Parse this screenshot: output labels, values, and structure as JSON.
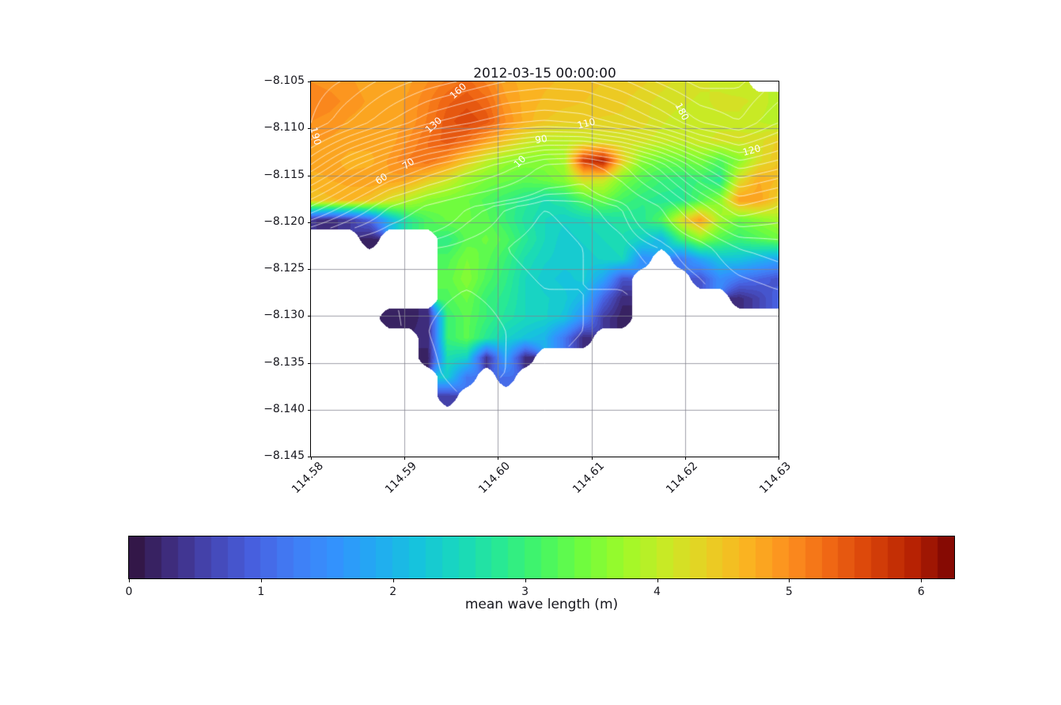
{
  "figure": {
    "title": "2012-03-15 00:00:00",
    "background": "#ffffff",
    "text_color": "#16161d"
  },
  "axes": {
    "x_tick_labels": [
      "114.58",
      "114.59",
      "114.60",
      "114.61",
      "114.62",
      "114.63"
    ],
    "x_tick_values": [
      114.58,
      114.59,
      114.6,
      114.61,
      114.62,
      114.63
    ],
    "y_tick_labels": [
      "−8.105",
      "−8.110",
      "−8.115",
      "−8.120",
      "−8.125",
      "−8.130",
      "−8.135",
      "−8.140",
      "−8.145"
    ],
    "y_tick_values": [
      -8.105,
      -8.11,
      -8.115,
      -8.12,
      -8.125,
      -8.13,
      -8.135,
      -8.14,
      -8.145
    ],
    "x_range": [
      114.58,
      114.63
    ],
    "y_range": [
      -8.145,
      -8.105
    ],
    "grid_color": "rgba(130,130,142,0.75)"
  },
  "colorbar": {
    "label": "mean wave length (m)",
    "tick_labels": [
      "0",
      "1",
      "2",
      "3",
      "4",
      "5",
      "6"
    ],
    "tick_values": [
      0,
      1,
      2,
      3,
      4,
      5,
      6
    ],
    "vmin": 0,
    "vmax": 6.25,
    "level_step": 0.125
  },
  "colormap": {
    "name": "turbo",
    "stops": [
      "#30123b",
      "#3e2c7c",
      "#4546b4",
      "#475fde",
      "#417df6",
      "#3392fd",
      "#22aaf2",
      "#16c3dd",
      "#18d8bd",
      "#28e994",
      "#44f665",
      "#70fc3e",
      "#9dfa29",
      "#c8ea25",
      "#e9d024",
      "#fab321",
      "#fd8f1f",
      "#f06714",
      "#d84209",
      "#b72203",
      "#7a0403"
    ]
  },
  "chart_data": {
    "type": "heatmap",
    "title": "2012-03-15 00:00:00",
    "xlabel": "",
    "ylabel": "",
    "colorbar_label": "mean wave length (m)",
    "x_range": [
      114.58,
      114.63
    ],
    "y_range": [
      -8.145,
      -8.105
    ],
    "legend": "none",
    "grid": true,
    "wave_grid": {
      "description": "mean wave length (m), null = land (masked white)",
      "ncols": 25,
      "nrows": 20,
      "lon_min": 114.58,
      "lon_max": 114.63,
      "lat_top": -8.105,
      "lat_bottom": -8.145,
      "values": [
        [
          5.0,
          4.95,
          4.9,
          4.8,
          4.8,
          4.85,
          5.0,
          5.15,
          5.3,
          5.1,
          4.8,
          4.7,
          4.65,
          4.6,
          4.55,
          4.5,
          4.45,
          4.4,
          4.3,
          4.2,
          4.15,
          4.1,
          4.05,
          null,
          null
        ],
        [
          5.1,
          5.05,
          4.95,
          4.85,
          4.8,
          4.9,
          5.1,
          5.35,
          5.45,
          5.3,
          4.9,
          4.7,
          4.6,
          4.55,
          4.5,
          4.45,
          4.4,
          4.3,
          4.2,
          4.15,
          4.1,
          4.15,
          4.15,
          4.1,
          3.9
        ],
        [
          5.0,
          4.95,
          4.85,
          4.8,
          4.8,
          4.9,
          5.15,
          5.45,
          5.6,
          5.45,
          5.0,
          4.7,
          4.5,
          4.4,
          4.4,
          4.35,
          4.35,
          4.3,
          4.15,
          4.05,
          4.1,
          4.1,
          4.1,
          4.0,
          3.9
        ],
        [
          4.9,
          4.85,
          4.8,
          4.8,
          4.8,
          5.0,
          5.25,
          5.45,
          5.25,
          4.85,
          4.5,
          4.15,
          3.95,
          3.95,
          4.05,
          4.15,
          4.15,
          4.15,
          4.05,
          4.0,
          4.1,
          4.15,
          4.15,
          4.2,
          4.4
        ],
        [
          4.8,
          4.8,
          4.7,
          4.7,
          4.9,
          5.15,
          5.25,
          4.95,
          4.45,
          4.0,
          3.7,
          3.6,
          3.6,
          3.8,
          5.7,
          6.0,
          4.4,
          3.6,
          3.4,
          3.4,
          3.5,
          3.2,
          3.6,
          4.2,
          4.5
        ],
        [
          4.7,
          4.75,
          4.8,
          4.85,
          4.85,
          4.75,
          4.4,
          4.1,
          3.7,
          3.5,
          3.4,
          3.3,
          3.4,
          3.6,
          4.2,
          4.1,
          3.5,
          3.2,
          3.0,
          2.9,
          3.0,
          2.8,
          4.2,
          4.75,
          4.6
        ],
        [
          4.5,
          4.6,
          4.65,
          4.55,
          4.2,
          3.9,
          3.6,
          3.5,
          3.4,
          3.2,
          3.0,
          2.8,
          2.6,
          2.75,
          3.2,
          3.4,
          3.1,
          2.9,
          2.8,
          2.8,
          3.2,
          3.6,
          4.85,
          4.85,
          4.4
        ],
        [
          0.4,
          0.3,
          0.5,
          1.0,
          2.0,
          2.8,
          3.2,
          3.4,
          3.4,
          3.3,
          3.0,
          2.7,
          2.5,
          2.4,
          2.5,
          2.6,
          2.7,
          2.8,
          3.2,
          4.2,
          4.85,
          3.8,
          3.4,
          3.6,
          3.8
        ],
        [
          null,
          null,
          null,
          0.2,
          null,
          null,
          null,
          2.9,
          3.3,
          3.4,
          3.2,
          2.8,
          2.5,
          2.3,
          2.4,
          2.5,
          2.6,
          2.4,
          2.0,
          3.0,
          3.6,
          3.2,
          3.0,
          3.2,
          3.4
        ],
        [
          null,
          null,
          null,
          null,
          null,
          null,
          null,
          3.2,
          3.5,
          3.3,
          3.0,
          2.6,
          2.4,
          2.3,
          2.3,
          2.4,
          2.5,
          1.5,
          null,
          1.2,
          1.8,
          2.2,
          2.2,
          2.0,
          1.8
        ],
        [
          null,
          null,
          null,
          null,
          null,
          null,
          null,
          3.3,
          3.6,
          3.2,
          2.9,
          2.5,
          2.3,
          2.2,
          2.3,
          1.8,
          0.8,
          null,
          null,
          null,
          0.8,
          1.5,
          1.2,
          1.0,
          0.8
        ],
        [
          null,
          null,
          null,
          null,
          null,
          null,
          null,
          3.2,
          3.4,
          3.0,
          2.8,
          2.5,
          2.4,
          2.3,
          2.0,
          1.0,
          0.3,
          null,
          null,
          null,
          null,
          null,
          0.3,
          0.6,
          1.0
        ],
        [
          null,
          null,
          null,
          null,
          0.15,
          0.2,
          0.3,
          3.0,
          3.3,
          3.0,
          2.7,
          2.5,
          2.4,
          2.2,
          1.5,
          0.5,
          0.15,
          null,
          null,
          null,
          null,
          null,
          null,
          null,
          null
        ],
        [
          null,
          null,
          null,
          null,
          null,
          null,
          0.3,
          3.0,
          3.3,
          2.8,
          2.4,
          2.2,
          2.0,
          1.2,
          0.3,
          null,
          null,
          null,
          null,
          null,
          null,
          null,
          null,
          null,
          null
        ],
        [
          null,
          null,
          null,
          null,
          null,
          null,
          0.2,
          2.6,
          2.4,
          0.4,
          1.8,
          0.3,
          null,
          null,
          null,
          null,
          null,
          null,
          null,
          null,
          null,
          null,
          null,
          null,
          null
        ],
        [
          null,
          null,
          null,
          null,
          null,
          null,
          null,
          2.3,
          1.2,
          null,
          1.1,
          null,
          null,
          null,
          null,
          null,
          null,
          null,
          null,
          null,
          null,
          null,
          null,
          null,
          null
        ],
        [
          null,
          null,
          null,
          null,
          null,
          null,
          null,
          0.5,
          null,
          null,
          null,
          null,
          null,
          null,
          null,
          null,
          null,
          null,
          null,
          null,
          null,
          null,
          null,
          null,
          null
        ],
        [
          null,
          null,
          null,
          null,
          null,
          null,
          null,
          null,
          null,
          null,
          null,
          null,
          null,
          null,
          null,
          null,
          null,
          null,
          null,
          null,
          null,
          null,
          null,
          null,
          null
        ],
        [
          null,
          null,
          null,
          null,
          null,
          null,
          null,
          null,
          null,
          null,
          null,
          null,
          null,
          null,
          null,
          null,
          null,
          null,
          null,
          null,
          null,
          null,
          null,
          null,
          null
        ],
        [
          null,
          null,
          null,
          null,
          null,
          null,
          null,
          null,
          null,
          null,
          null,
          null,
          null,
          null,
          null,
          null,
          null,
          null,
          null,
          null,
          null,
          null,
          null,
          null,
          null
        ]
      ]
    },
    "contour_overlay": {
      "color": "#ffffff",
      "levels": [
        2,
        4,
        6,
        8,
        10,
        20,
        30,
        40,
        50,
        60,
        70,
        80,
        90,
        100,
        110,
        120,
        130,
        140,
        150,
        160,
        170,
        180,
        190
      ],
      "grid": {
        "ncols": 13,
        "nrows": 10,
        "values": [
          [
            196,
            188,
            176,
            166,
            158,
            150,
            146,
            148,
            158,
            172,
            184,
            182,
            170
          ],
          [
            190,
            170,
            150,
            132,
            122,
            112,
            108,
            112,
            124,
            140,
            160,
            170,
            150
          ],
          [
            140,
            105,
            80,
            62,
            48,
            35,
            18,
            14,
            28,
            55,
            90,
            115,
            105
          ],
          [
            80,
            55,
            30,
            18,
            10,
            6,
            4,
            5,
            8,
            20,
            45,
            70,
            60
          ],
          [
            20,
            10,
            8,
            6,
            5,
            4,
            3,
            4,
            5,
            8,
            15,
            30,
            35
          ],
          [
            5,
            4,
            4,
            5,
            6,
            5,
            4,
            4,
            4,
            5,
            8,
            15,
            20
          ],
          [
            2,
            2,
            3,
            6,
            8,
            6,
            5,
            4,
            3,
            3,
            4,
            8,
            10
          ],
          [
            1,
            1,
            2,
            5,
            8,
            6,
            4,
            3,
            2,
            2,
            3,
            5,
            6
          ],
          [
            0,
            0,
            1,
            3,
            5,
            4,
            3,
            2,
            1,
            1,
            2,
            3,
            4
          ],
          [
            0,
            0,
            0,
            1,
            2,
            2,
            2,
            1,
            1,
            0,
            1,
            2,
            2
          ]
        ]
      },
      "labels": [
        {
          "text": "190",
          "lon": 114.5805,
          "lat": -8.1108,
          "rot": 75
        },
        {
          "text": "160",
          "lon": 114.5957,
          "lat": -8.106,
          "rot": -42
        },
        {
          "text": "130",
          "lon": 114.5931,
          "lat": -8.1096,
          "rot": -42
        },
        {
          "text": "70",
          "lon": 114.5904,
          "lat": -8.1138,
          "rot": -35
        },
        {
          "text": "60",
          "lon": 114.5875,
          "lat": -8.1154,
          "rot": -33
        },
        {
          "text": "110",
          "lon": 114.6094,
          "lat": -8.1095,
          "rot": -14
        },
        {
          "text": "90",
          "lon": 114.6046,
          "lat": -8.1112,
          "rot": -10
        },
        {
          "text": "10",
          "lon": 114.6023,
          "lat": -8.1135,
          "rot": -45
        },
        {
          "text": "180",
          "lon": 114.6197,
          "lat": -8.1082,
          "rot": 62
        },
        {
          "text": "120",
          "lon": 114.6271,
          "lat": -8.1123,
          "rot": -15
        }
      ]
    }
  }
}
